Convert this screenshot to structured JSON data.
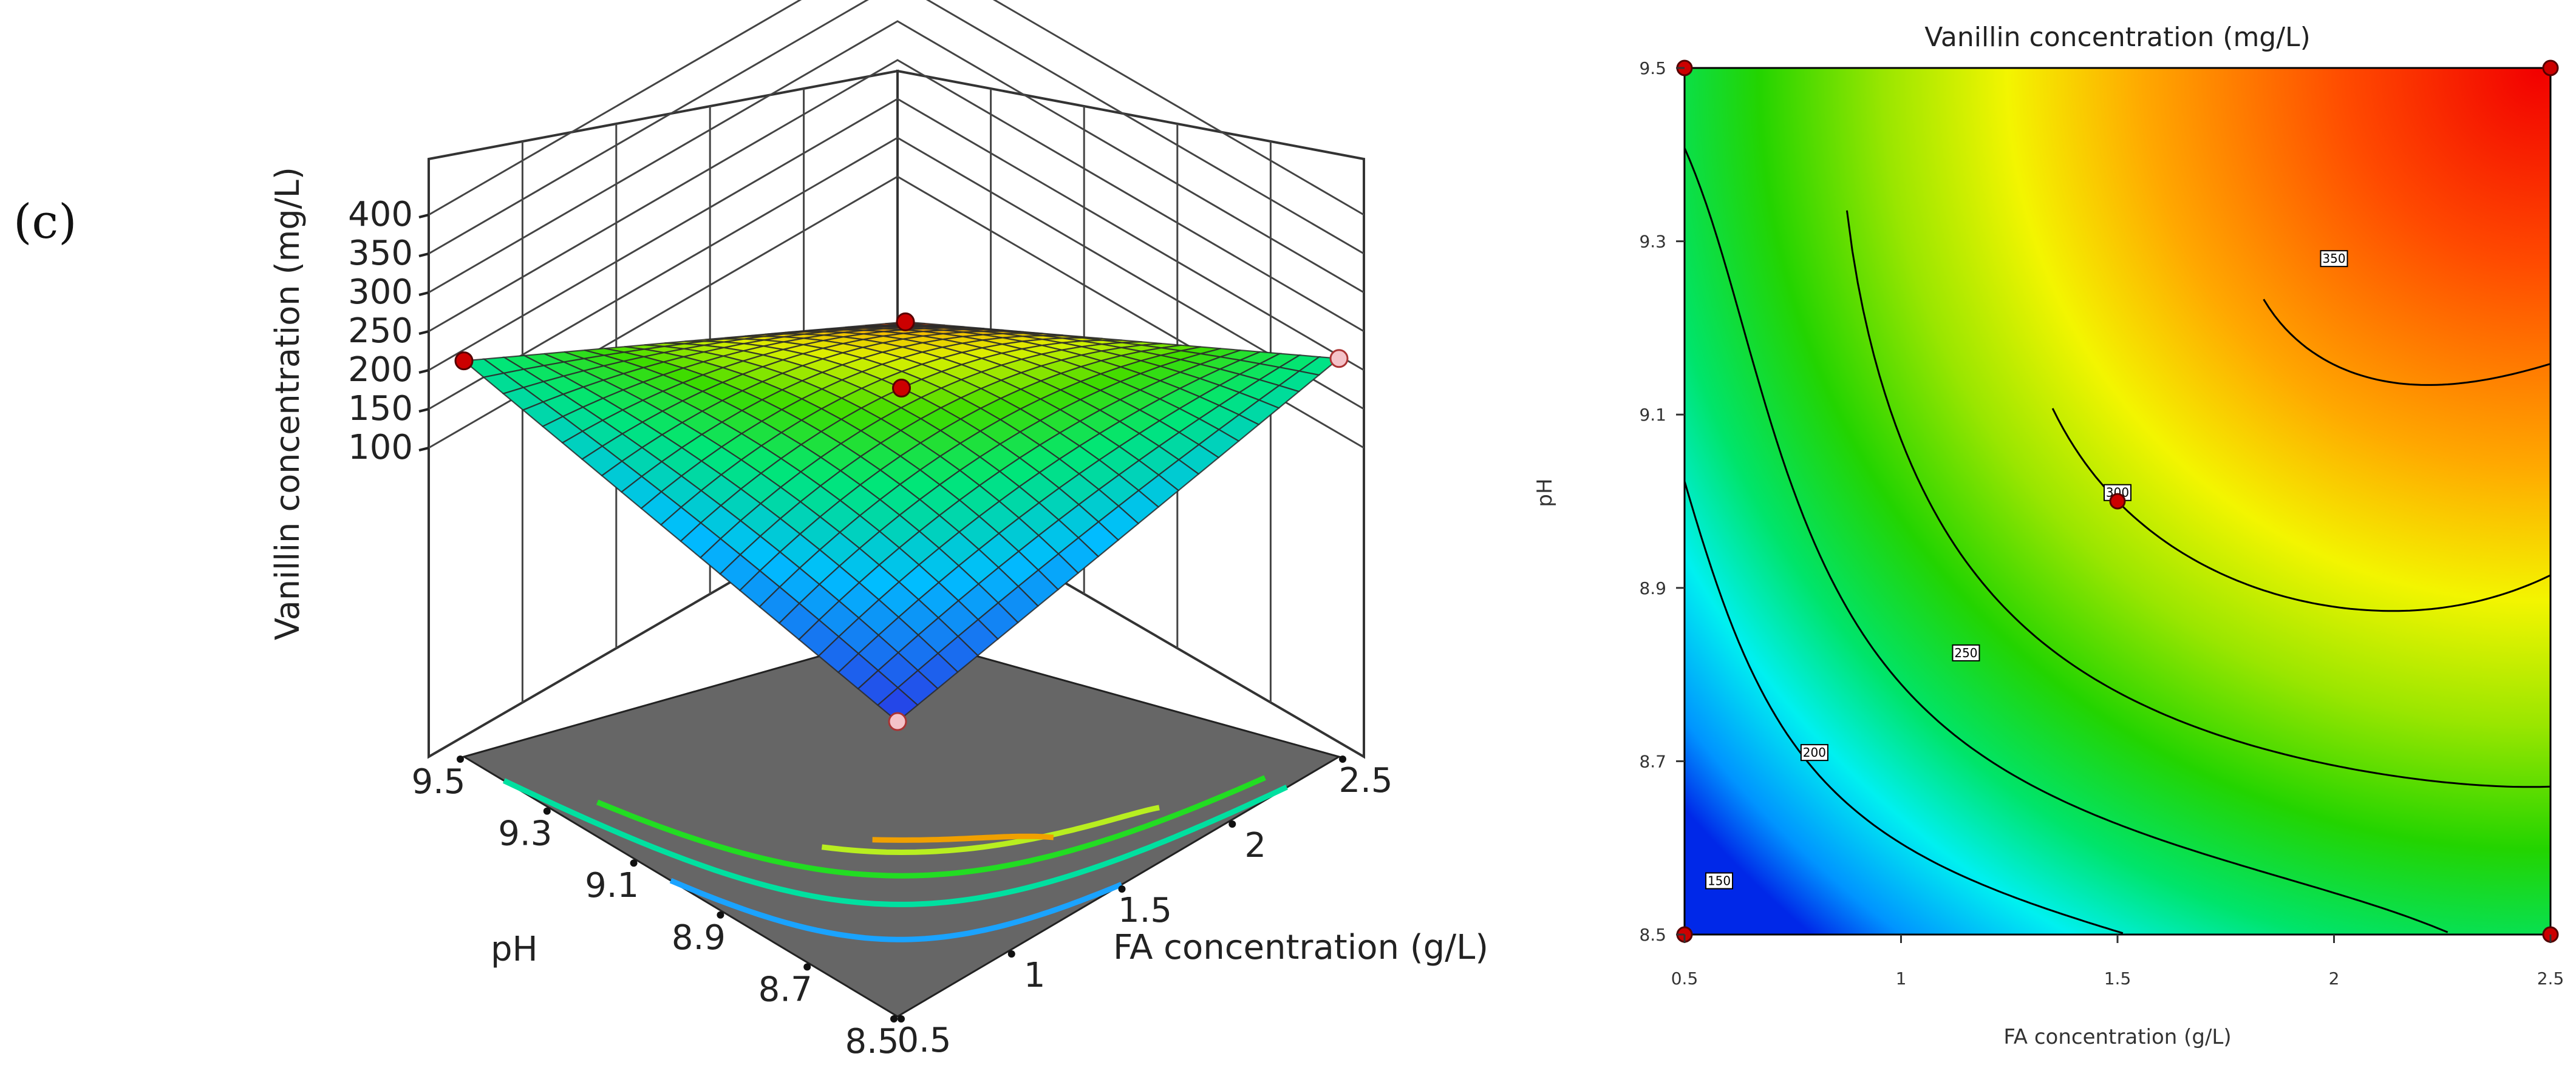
{
  "panel_label": "(c)",
  "chart_data": [
    {
      "type": "surface3d",
      "zlabel": "Vanillin concentration (mg/L)",
      "xlabel": "FA concentration (g/L)",
      "ylabel": "pH",
      "x_ticks": [
        "0.5",
        "1",
        "1.5",
        "2",
        "2.5"
      ],
      "y_ticks": [
        "8.5",
        "8.7",
        "8.9",
        "9.1",
        "9.3",
        "9.5"
      ],
      "z_ticks": [
        "100",
        "150",
        "200",
        "250",
        "300",
        "350",
        "400"
      ],
      "xlim": [
        0.5,
        2.5
      ],
      "ylim": [
        8.5,
        9.5
      ],
      "zlim": [
        50,
        400
      ],
      "grid": true,
      "base_contour_levels": [
        150,
        200,
        250,
        300,
        350
      ],
      "surface_corners": [
        {
          "x": 0.5,
          "y": 8.5,
          "z": 82
        },
        {
          "x": 2.5,
          "y": 8.5,
          "z": 215
        },
        {
          "x": 0.5,
          "y": 9.5,
          "z": 212
        },
        {
          "x": 2.5,
          "y": 9.5,
          "z": 420
        }
      ],
      "design_points": [
        {
          "x": 0.5,
          "y": 8.5,
          "z": 82,
          "marker": "below-surface"
        },
        {
          "x": 2.5,
          "y": 8.5,
          "z": 215,
          "marker": "below-surface"
        },
        {
          "x": 0.5,
          "y": 9.5,
          "z": 212,
          "marker": "above-surface"
        },
        {
          "x": 2.5,
          "y": 9.5,
          "z": 420,
          "marker": "above-surface"
        },
        {
          "x": 1.5,
          "y": 9.0,
          "z": 300,
          "marker": "above-surface"
        }
      ]
    },
    {
      "type": "contour",
      "title": "Vanillin concentration (mg/L)",
      "xlabel": "FA concentration (g/L)",
      "ylabel": "pH",
      "x_ticks": [
        "0.5",
        "1",
        "1.5",
        "2",
        "2.5"
      ],
      "y_ticks": [
        "8.5",
        "8.7",
        "8.9",
        "9.1",
        "9.3",
        "9.5"
      ],
      "xlim": [
        0.5,
        2.5
      ],
      "ylim": [
        8.5,
        9.5
      ],
      "color_range": [
        80,
        420
      ],
      "contour_levels": [
        {
          "value": 150,
          "label": "150",
          "label_at": {
            "x": 0.58,
            "y": 8.562
          }
        },
        {
          "value": 200,
          "label": "200",
          "label_at": {
            "x": 0.8,
            "y": 8.71
          }
        },
        {
          "value": 250,
          "label": "250",
          "label_at": {
            "x": 1.15,
            "y": 8.825
          }
        },
        {
          "value": 300,
          "label": "300",
          "label_at": {
            "x": 1.5,
            "y": 9.01
          }
        },
        {
          "value": 350,
          "label": "350",
          "label_at": {
            "x": 2.0,
            "y": 9.28
          }
        }
      ],
      "design_points": [
        {
          "x": 0.5,
          "y": 8.5
        },
        {
          "x": 2.5,
          "y": 8.5
        },
        {
          "x": 0.5,
          "y": 9.5
        },
        {
          "x": 2.5,
          "y": 9.5
        },
        {
          "x": 1.5,
          "y": 9.0
        }
      ]
    }
  ]
}
